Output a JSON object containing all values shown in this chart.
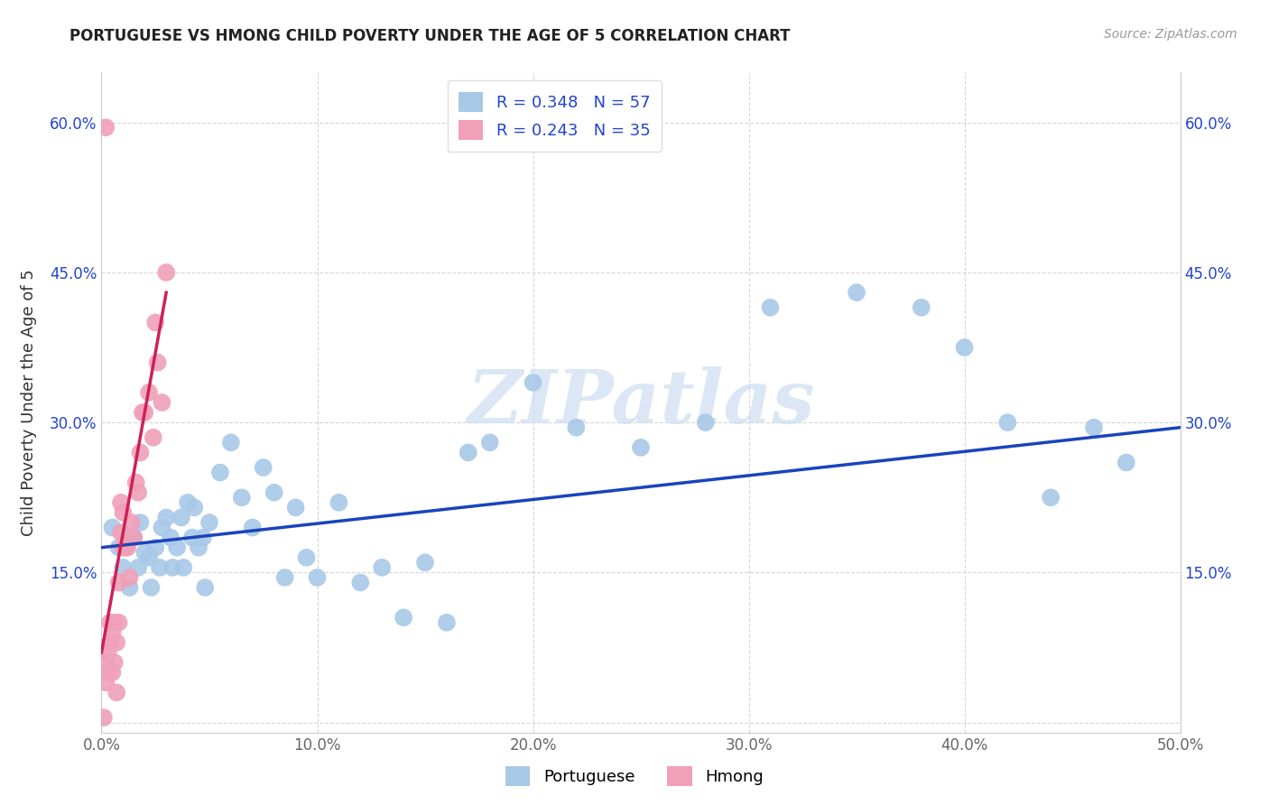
{
  "title": "PORTUGUESE VS HMONG CHILD POVERTY UNDER THE AGE OF 5 CORRELATION CHART",
  "source": "Source: ZipAtlas.com",
  "ylabel": "Child Poverty Under the Age of 5",
  "xlim": [
    0.0,
    0.5
  ],
  "ylim": [
    -0.01,
    0.65
  ],
  "xticks": [
    0.0,
    0.1,
    0.2,
    0.3,
    0.4,
    0.5
  ],
  "yticks": [
    0.0,
    0.15,
    0.3,
    0.45,
    0.6
  ],
  "xticklabels": [
    "0.0%",
    "10.0%",
    "20.0%",
    "30.0%",
    "40.0%",
    "50.0%"
  ],
  "yticklabels_left": [
    "",
    "15.0%",
    "30.0%",
    "45.0%",
    "60.0%"
  ],
  "yticklabels_right": [
    "",
    "15.0%",
    "30.0%",
    "45.0%",
    "60.0%"
  ],
  "portuguese_color": "#a8c8e8",
  "hmong_color": "#f0a0b8",
  "trend_portuguese_color": "#1a44bb",
  "trend_hmong_color": "#cc2255",
  "label_color": "#2244cc",
  "R_portuguese": "0.348",
  "N_portuguese": "57",
  "R_hmong": "0.243",
  "N_hmong": "35",
  "watermark_text": "ZIPatlas",
  "watermark_color": "#ccddf0",
  "portuguese_x": [
    0.005,
    0.008,
    0.01,
    0.012,
    0.013,
    0.015,
    0.017,
    0.018,
    0.02,
    0.022,
    0.023,
    0.025,
    0.027,
    0.028,
    0.03,
    0.032,
    0.033,
    0.035,
    0.037,
    0.038,
    0.04,
    0.042,
    0.043,
    0.045,
    0.047,
    0.048,
    0.05,
    0.055,
    0.06,
    0.065,
    0.07,
    0.075,
    0.08,
    0.085,
    0.09,
    0.095,
    0.1,
    0.11,
    0.12,
    0.13,
    0.14,
    0.15,
    0.16,
    0.17,
    0.18,
    0.2,
    0.22,
    0.25,
    0.28,
    0.31,
    0.35,
    0.38,
    0.4,
    0.42,
    0.44,
    0.46,
    0.475
  ],
  "portuguese_y": [
    0.195,
    0.175,
    0.155,
    0.185,
    0.135,
    0.185,
    0.155,
    0.2,
    0.17,
    0.165,
    0.135,
    0.175,
    0.155,
    0.195,
    0.205,
    0.185,
    0.155,
    0.175,
    0.205,
    0.155,
    0.22,
    0.185,
    0.215,
    0.175,
    0.185,
    0.135,
    0.2,
    0.25,
    0.28,
    0.225,
    0.195,
    0.255,
    0.23,
    0.145,
    0.215,
    0.165,
    0.145,
    0.22,
    0.14,
    0.155,
    0.105,
    0.16,
    0.1,
    0.27,
    0.28,
    0.34,
    0.295,
    0.275,
    0.3,
    0.415,
    0.43,
    0.415,
    0.375,
    0.3,
    0.225,
    0.295,
    0.26
  ],
  "hmong_x": [
    0.001,
    0.002,
    0.002,
    0.003,
    0.003,
    0.004,
    0.004,
    0.005,
    0.005,
    0.006,
    0.006,
    0.007,
    0.007,
    0.008,
    0.008,
    0.009,
    0.009,
    0.01,
    0.01,
    0.011,
    0.012,
    0.013,
    0.014,
    0.015,
    0.016,
    0.017,
    0.018,
    0.019,
    0.02,
    0.022,
    0.024,
    0.025,
    0.026,
    0.028,
    0.03
  ],
  "hmong_y": [
    0.005,
    0.04,
    0.06,
    0.07,
    0.05,
    0.08,
    0.1,
    0.05,
    0.09,
    0.06,
    0.1,
    0.03,
    0.08,
    0.1,
    0.14,
    0.19,
    0.22,
    0.175,
    0.21,
    0.175,
    0.175,
    0.145,
    0.2,
    0.185,
    0.24,
    0.23,
    0.27,
    0.31,
    0.31,
    0.33,
    0.285,
    0.4,
    0.36,
    0.32,
    0.45
  ],
  "hmong_outlier_x": [
    0.002
  ],
  "hmong_outlier_y": [
    0.595
  ],
  "trend_port_x0": 0.0,
  "trend_port_x1": 0.5,
  "trend_port_y0": 0.175,
  "trend_port_y1": 0.295,
  "trend_hmong_x0": 0.0,
  "trend_hmong_x1": 0.03,
  "trend_hmong_y0": 0.07,
  "trend_hmong_y1": 0.43
}
